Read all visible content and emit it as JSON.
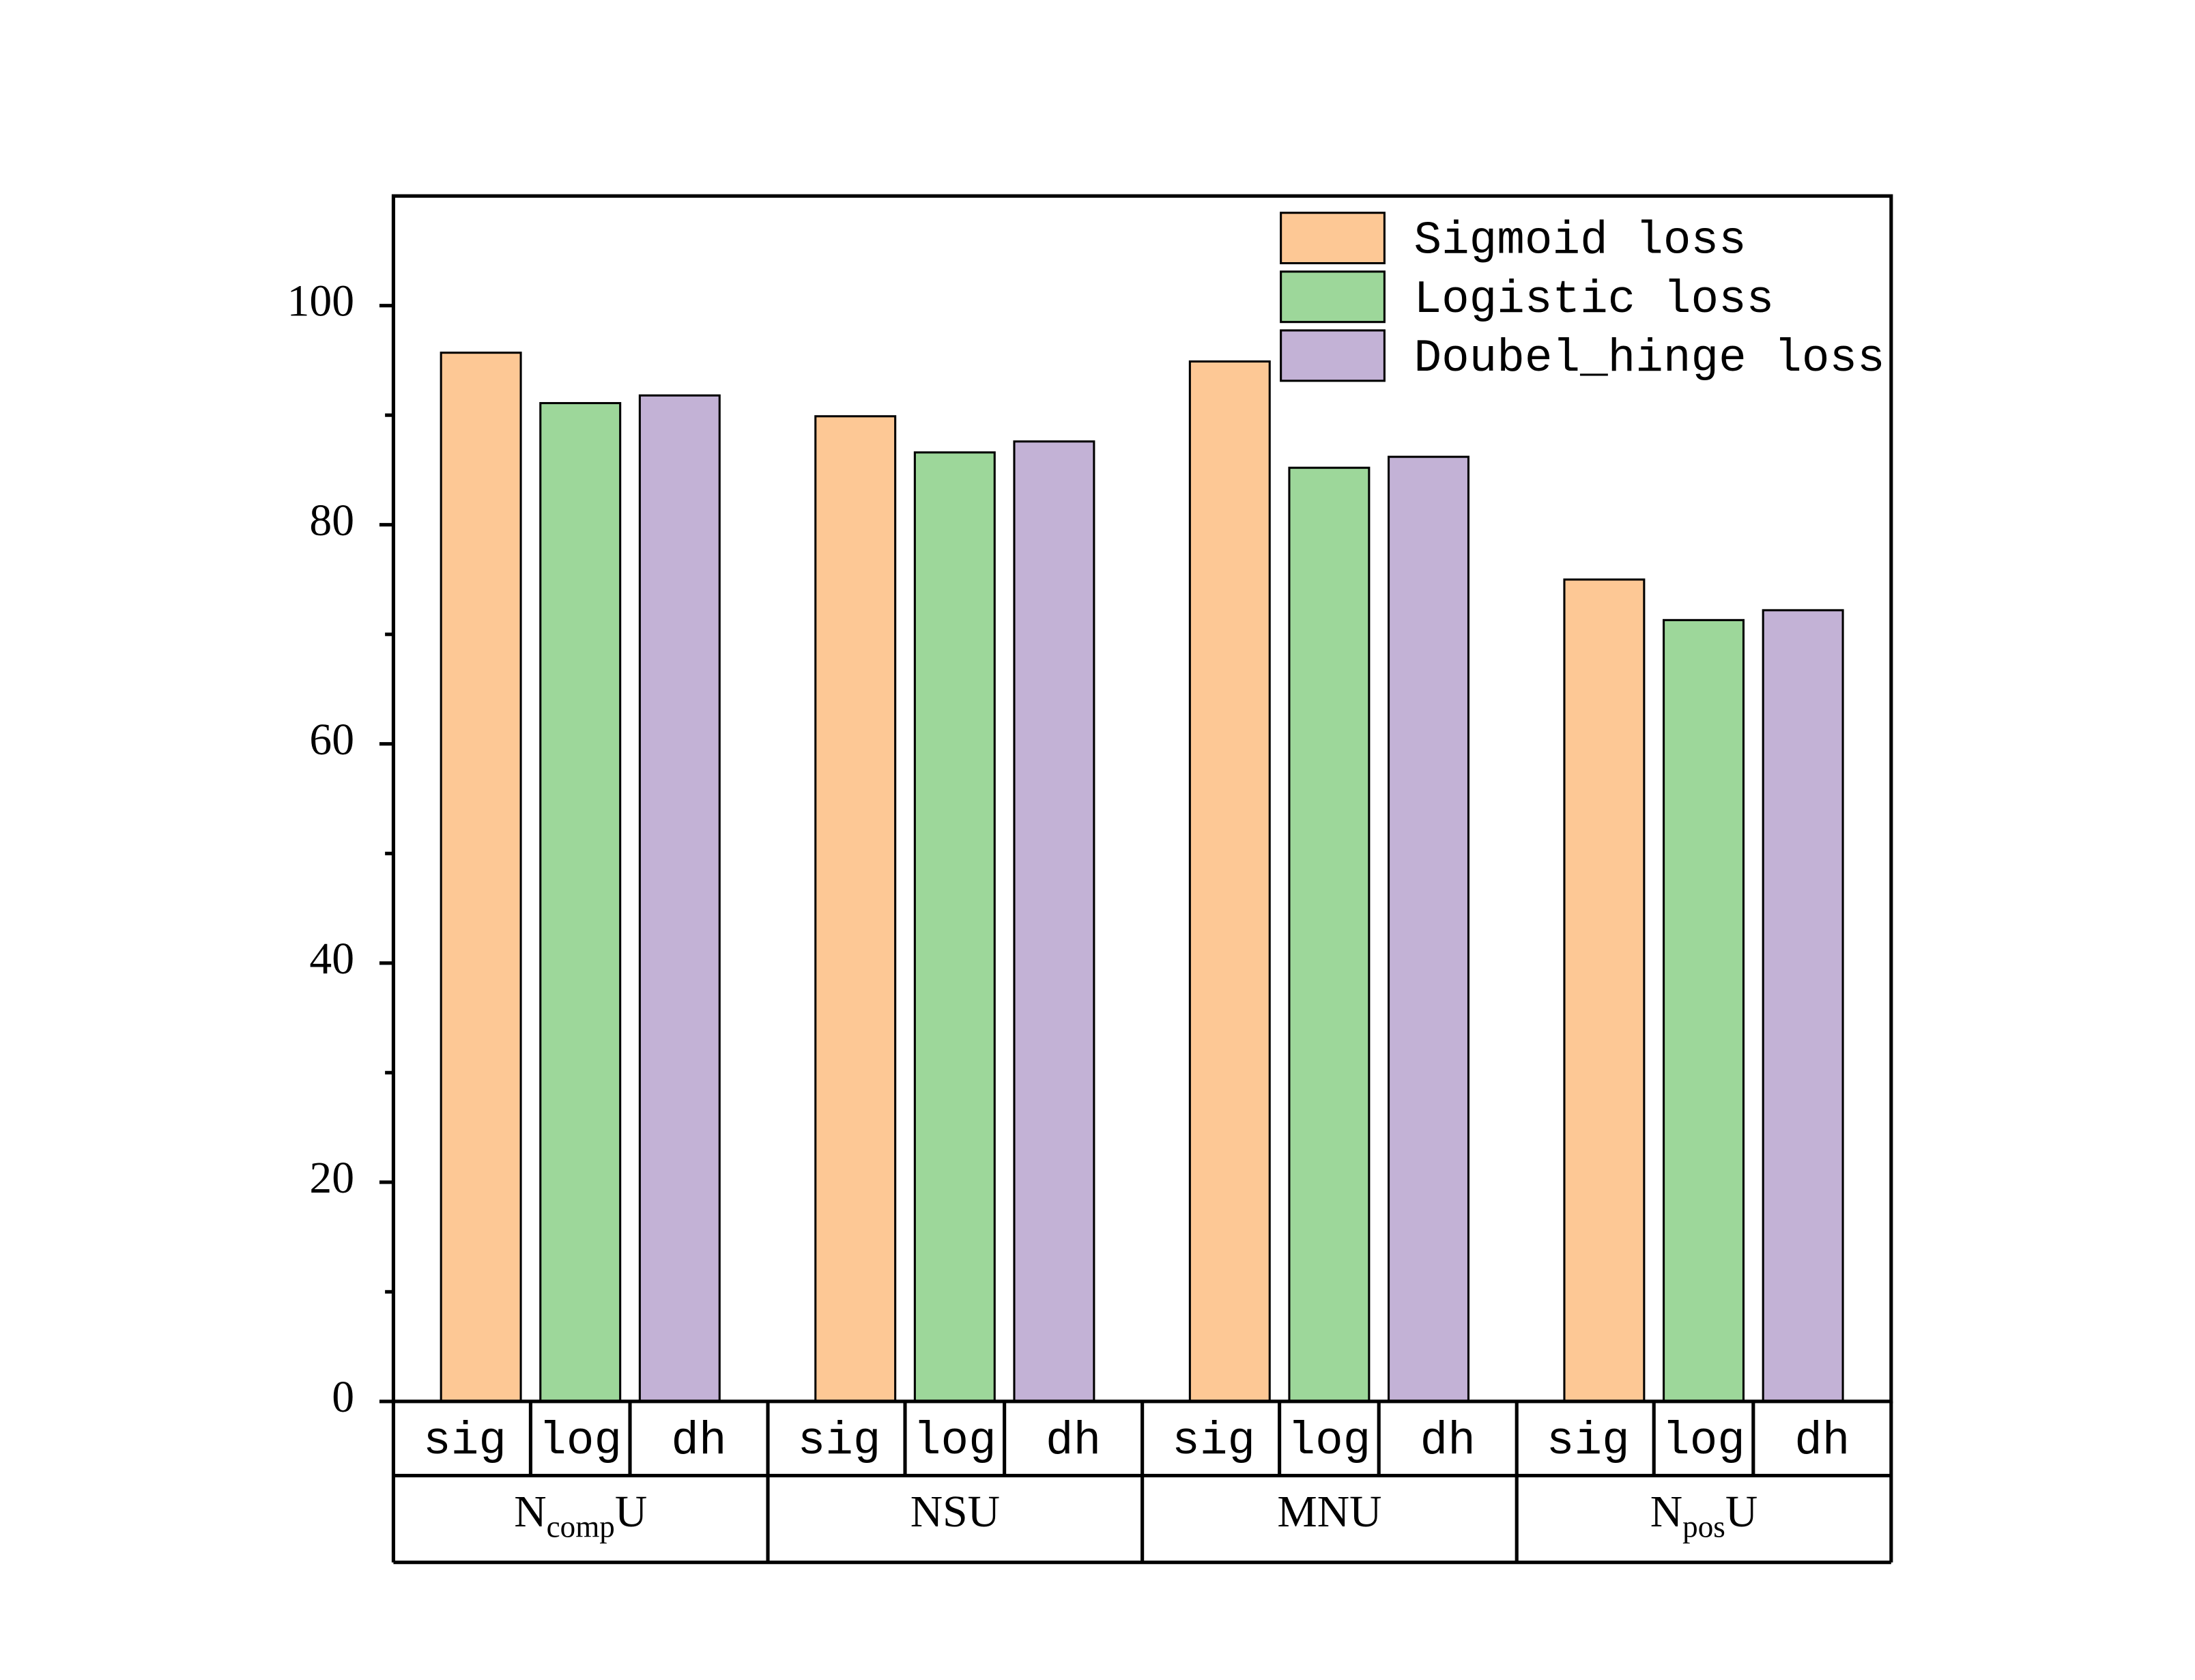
{
  "chart_data": {
    "type": "bar",
    "categories": [
      [
        "N",
        "comp",
        "U"
      ],
      [
        "NSU"
      ],
      [
        "MNU"
      ],
      [
        "N",
        "pos",
        "U"
      ]
    ],
    "subcategories": [
      "sig",
      "log",
      "dh"
    ],
    "series": [
      {
        "name": "Sigmoid loss",
        "color": "#fdc895",
        "values": [
          95.7,
          89.9,
          94.9,
          75.0
        ]
      },
      {
        "name": "Logistic loss",
        "color": "#9dd79a",
        "values": [
          91.1,
          86.6,
          85.2,
          71.3
        ]
      },
      {
        "name": "Doubel_hinge loss",
        "color": "#c3b2d6",
        "values": [
          91.8,
          87.6,
          86.2,
          72.2
        ]
      }
    ],
    "ylim": [
      0,
      110
    ],
    "yticks": [
      0,
      20,
      40,
      60,
      80,
      100
    ],
    "yticks_minor": [
      10,
      30,
      50,
      70,
      90
    ],
    "legend": "upper right"
  }
}
